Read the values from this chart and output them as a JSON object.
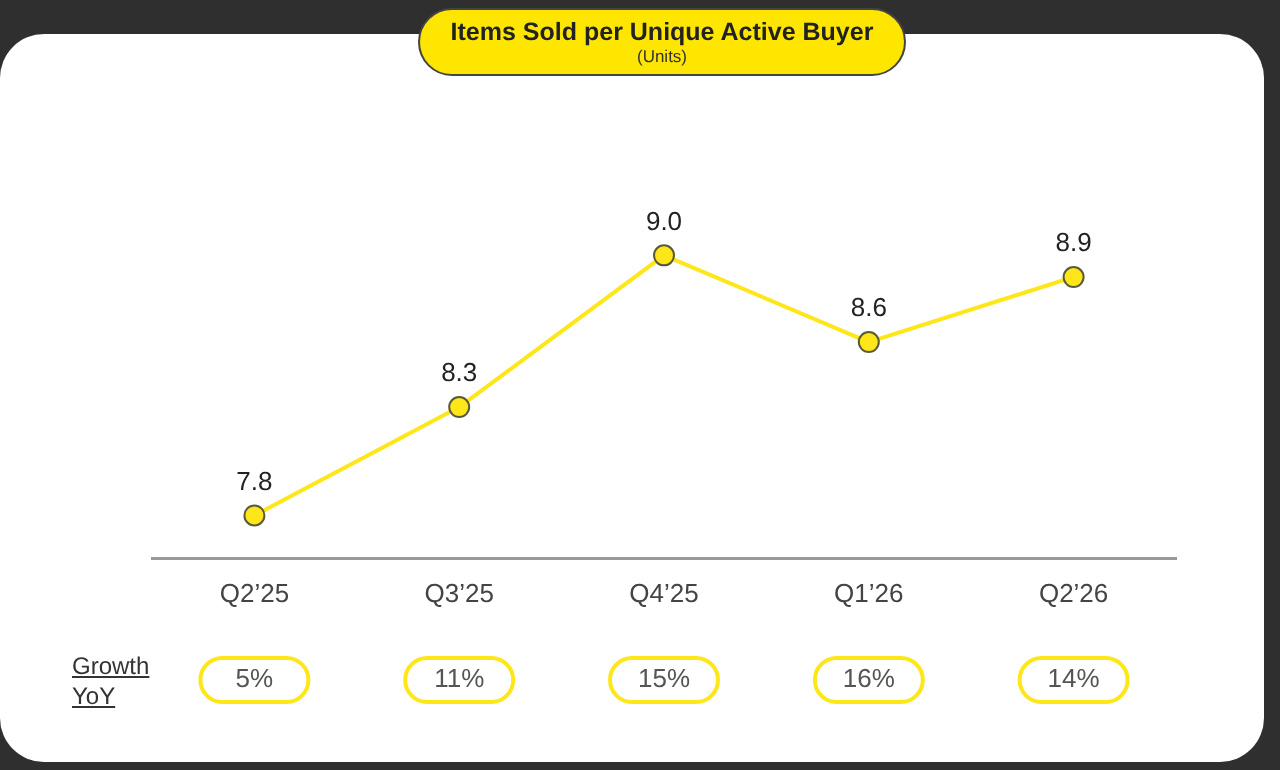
{
  "chart_data": {
    "type": "line",
    "title": "Items Sold per Unique Active Buyer",
    "subtitle": "(Units)",
    "categories": [
      "Q2’25",
      "Q3’25",
      "Q4’25",
      "Q1’26",
      "Q2’26"
    ],
    "series": [
      {
        "color": "#ffe619",
        "values": [
          7.8,
          8.3,
          9.0,
          8.6,
          8.9
        ],
        "value_labels": [
          "7.8",
          "8.3",
          "9.0",
          "8.6",
          "8.9"
        ]
      }
    ],
    "marker": "circle",
    "line_style": "solid",
    "annotations": [
      "Growth YoY",
      "5%",
      "11%",
      "15%",
      "16%",
      "14%"
    ]
  }
}
